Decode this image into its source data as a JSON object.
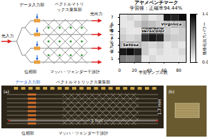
{
  "diagram": {
    "labels": {
      "data_input": "データ入力部",
      "vmm": [
        "ベクトルマトリ",
        "ックス乗算部"
      ],
      "light_in": "光入力",
      "light_out": "光出力",
      "phase": "位相部",
      "mzi": "マッハ・ツェンダー干渉計"
    }
  },
  "chart_data": {
    "type": "heatmap",
    "title": "アヤメベンチマーク",
    "subtitle": "学習後：正確率94.44%",
    "x_label": "学習サンプル数",
    "y_label": "出力ポート番号",
    "bins": [
      0,
      10,
      20,
      30,
      40,
      50,
      60,
      70,
      80,
      90
    ],
    "categories": [
      7,
      6,
      5,
      4,
      3,
      2,
      1
    ],
    "cells": [
      [
        0.1,
        0.15,
        0.1,
        0.2,
        0.1,
        0.15,
        0.9,
        0.85,
        0.95
      ],
      [
        0.1,
        0.1,
        0.2,
        0.3,
        0.25,
        0.2,
        0.3,
        0.35,
        0.3
      ],
      [
        0.15,
        0.1,
        0.1,
        0.6,
        0.7,
        0.65,
        0.2,
        0.15,
        0.2
      ],
      [
        0.2,
        0.15,
        0.2,
        0.8,
        0.9,
        0.85,
        0.25,
        0.2,
        0.2
      ],
      [
        0.3,
        0.35,
        0.3,
        0.2,
        0.15,
        0.2,
        0.1,
        0.15,
        0.1
      ],
      [
        0.9,
        0.95,
        0.85,
        0.2,
        0.1,
        0.15,
        0.1,
        0.1,
        0.15
      ],
      [
        0.5,
        0.45,
        0.55,
        0.1,
        0.15,
        0.1,
        0.1,
        0.1,
        0.1
      ]
    ],
    "xlim": [
      0,
      90
    ],
    "xticks": [
      0,
      20,
      40,
      60,
      80
    ],
    "colorbar": {
      "label": "規格化出力パワー",
      "range": [
        0,
        1
      ],
      "ticks": [
        0,
        1
      ],
      "colors": [
        "#ffffff",
        "#000000"
      ]
    },
    "annotations": [
      {
        "text": "Virginica",
        "x": 70,
        "port": 6
      },
      {
        "text": "Versicolor",
        "x": 45,
        "port": 5
      },
      {
        "text": "Setosa",
        "x": 15,
        "port": 3
      }
    ]
  },
  "photo": {
    "panel_a": "(a)",
    "panel_b": "(b)",
    "labels": {
      "data_input": "データ入力部",
      "vmm": "ベクトルマトリックス乗算部",
      "phase": "位相部",
      "mzi": "マッハ・ツェンダー干渉計"
    },
    "scale_x": "5 mm",
    "scale_y": "1.7 mm"
  }
}
